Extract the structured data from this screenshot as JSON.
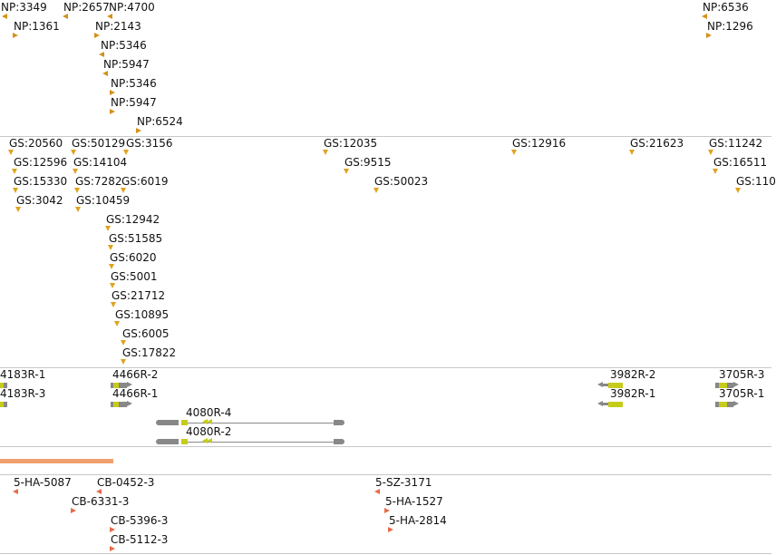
{
  "colors": {
    "np_marker": "#d4901a",
    "gs_marker": "#e0a21e",
    "sample_marker": "#e86a4a",
    "gene_exon": "#888888",
    "gene_cds": "#c6cc1a",
    "coverage_bar": "#f0a070",
    "separator": "#c8c8c8"
  },
  "np_track": {
    "markers": [
      {
        "label": "NP:3349",
        "dir": "left"
      },
      {
        "label": "NP:2657",
        "dir": "left"
      },
      {
        "label": "NP:4700",
        "dir": "left"
      },
      {
        "label": "NP:1361",
        "dir": "right"
      },
      {
        "label": "NP:2143",
        "dir": "right"
      },
      {
        "label": "NP:5346",
        "dir": "left"
      },
      {
        "label": "NP:5947",
        "dir": "left"
      },
      {
        "label": "NP:5346",
        "dir": "right"
      },
      {
        "label": "NP:5947",
        "dir": "right"
      },
      {
        "label": "NP:6524",
        "dir": "right"
      },
      {
        "label": "NP:6536",
        "dir": "left"
      },
      {
        "label": "NP:1296",
        "dir": "right"
      }
    ]
  },
  "gs_track": {
    "markers": [
      {
        "label": "GS:20560"
      },
      {
        "label": "GS:50129"
      },
      {
        "label": "GS:3156"
      },
      {
        "label": "GS:12035"
      },
      {
        "label": "GS:12916"
      },
      {
        "label": "GS:21623"
      },
      {
        "label": "GS:11242"
      },
      {
        "label": "GS:12596"
      },
      {
        "label": "GS:14104"
      },
      {
        "label": "GS:9515"
      },
      {
        "label": "GS:16511"
      },
      {
        "label": "GS:15330"
      },
      {
        "label": "GS:7282"
      },
      {
        "label": "GS:6019"
      },
      {
        "label": "GS:50023"
      },
      {
        "label": "GS:110"
      },
      {
        "label": "GS:3042"
      },
      {
        "label": "GS:10459"
      },
      {
        "label": "GS:12942"
      },
      {
        "label": "GS:51585"
      },
      {
        "label": "GS:6020"
      },
      {
        "label": "GS:5001"
      },
      {
        "label": "GS:21712"
      },
      {
        "label": "GS:10895"
      },
      {
        "label": "GS:6005"
      },
      {
        "label": "GS:17822"
      }
    ]
  },
  "gene_track": {
    "genes": [
      {
        "label": "4183R-1"
      },
      {
        "label": "4183R-3"
      },
      {
        "label": "4466R-2"
      },
      {
        "label": "4466R-1"
      },
      {
        "label": "4080R-4"
      },
      {
        "label": "4080R-2"
      },
      {
        "label": "3982R-2"
      },
      {
        "label": "3982R-1"
      },
      {
        "label": "3705R-3"
      },
      {
        "label": "3705R-1"
      }
    ]
  },
  "sample_track": {
    "markers": [
      {
        "label": "5-HA-5087"
      },
      {
        "label": "CB-0452-3"
      },
      {
        "label": "CB-6331-3"
      },
      {
        "label": "CB-5396-3"
      },
      {
        "label": "CB-5112-3"
      },
      {
        "label": "5-SZ-3171"
      },
      {
        "label": "5-HA-1527"
      },
      {
        "label": "5-HA-2814"
      }
    ]
  }
}
